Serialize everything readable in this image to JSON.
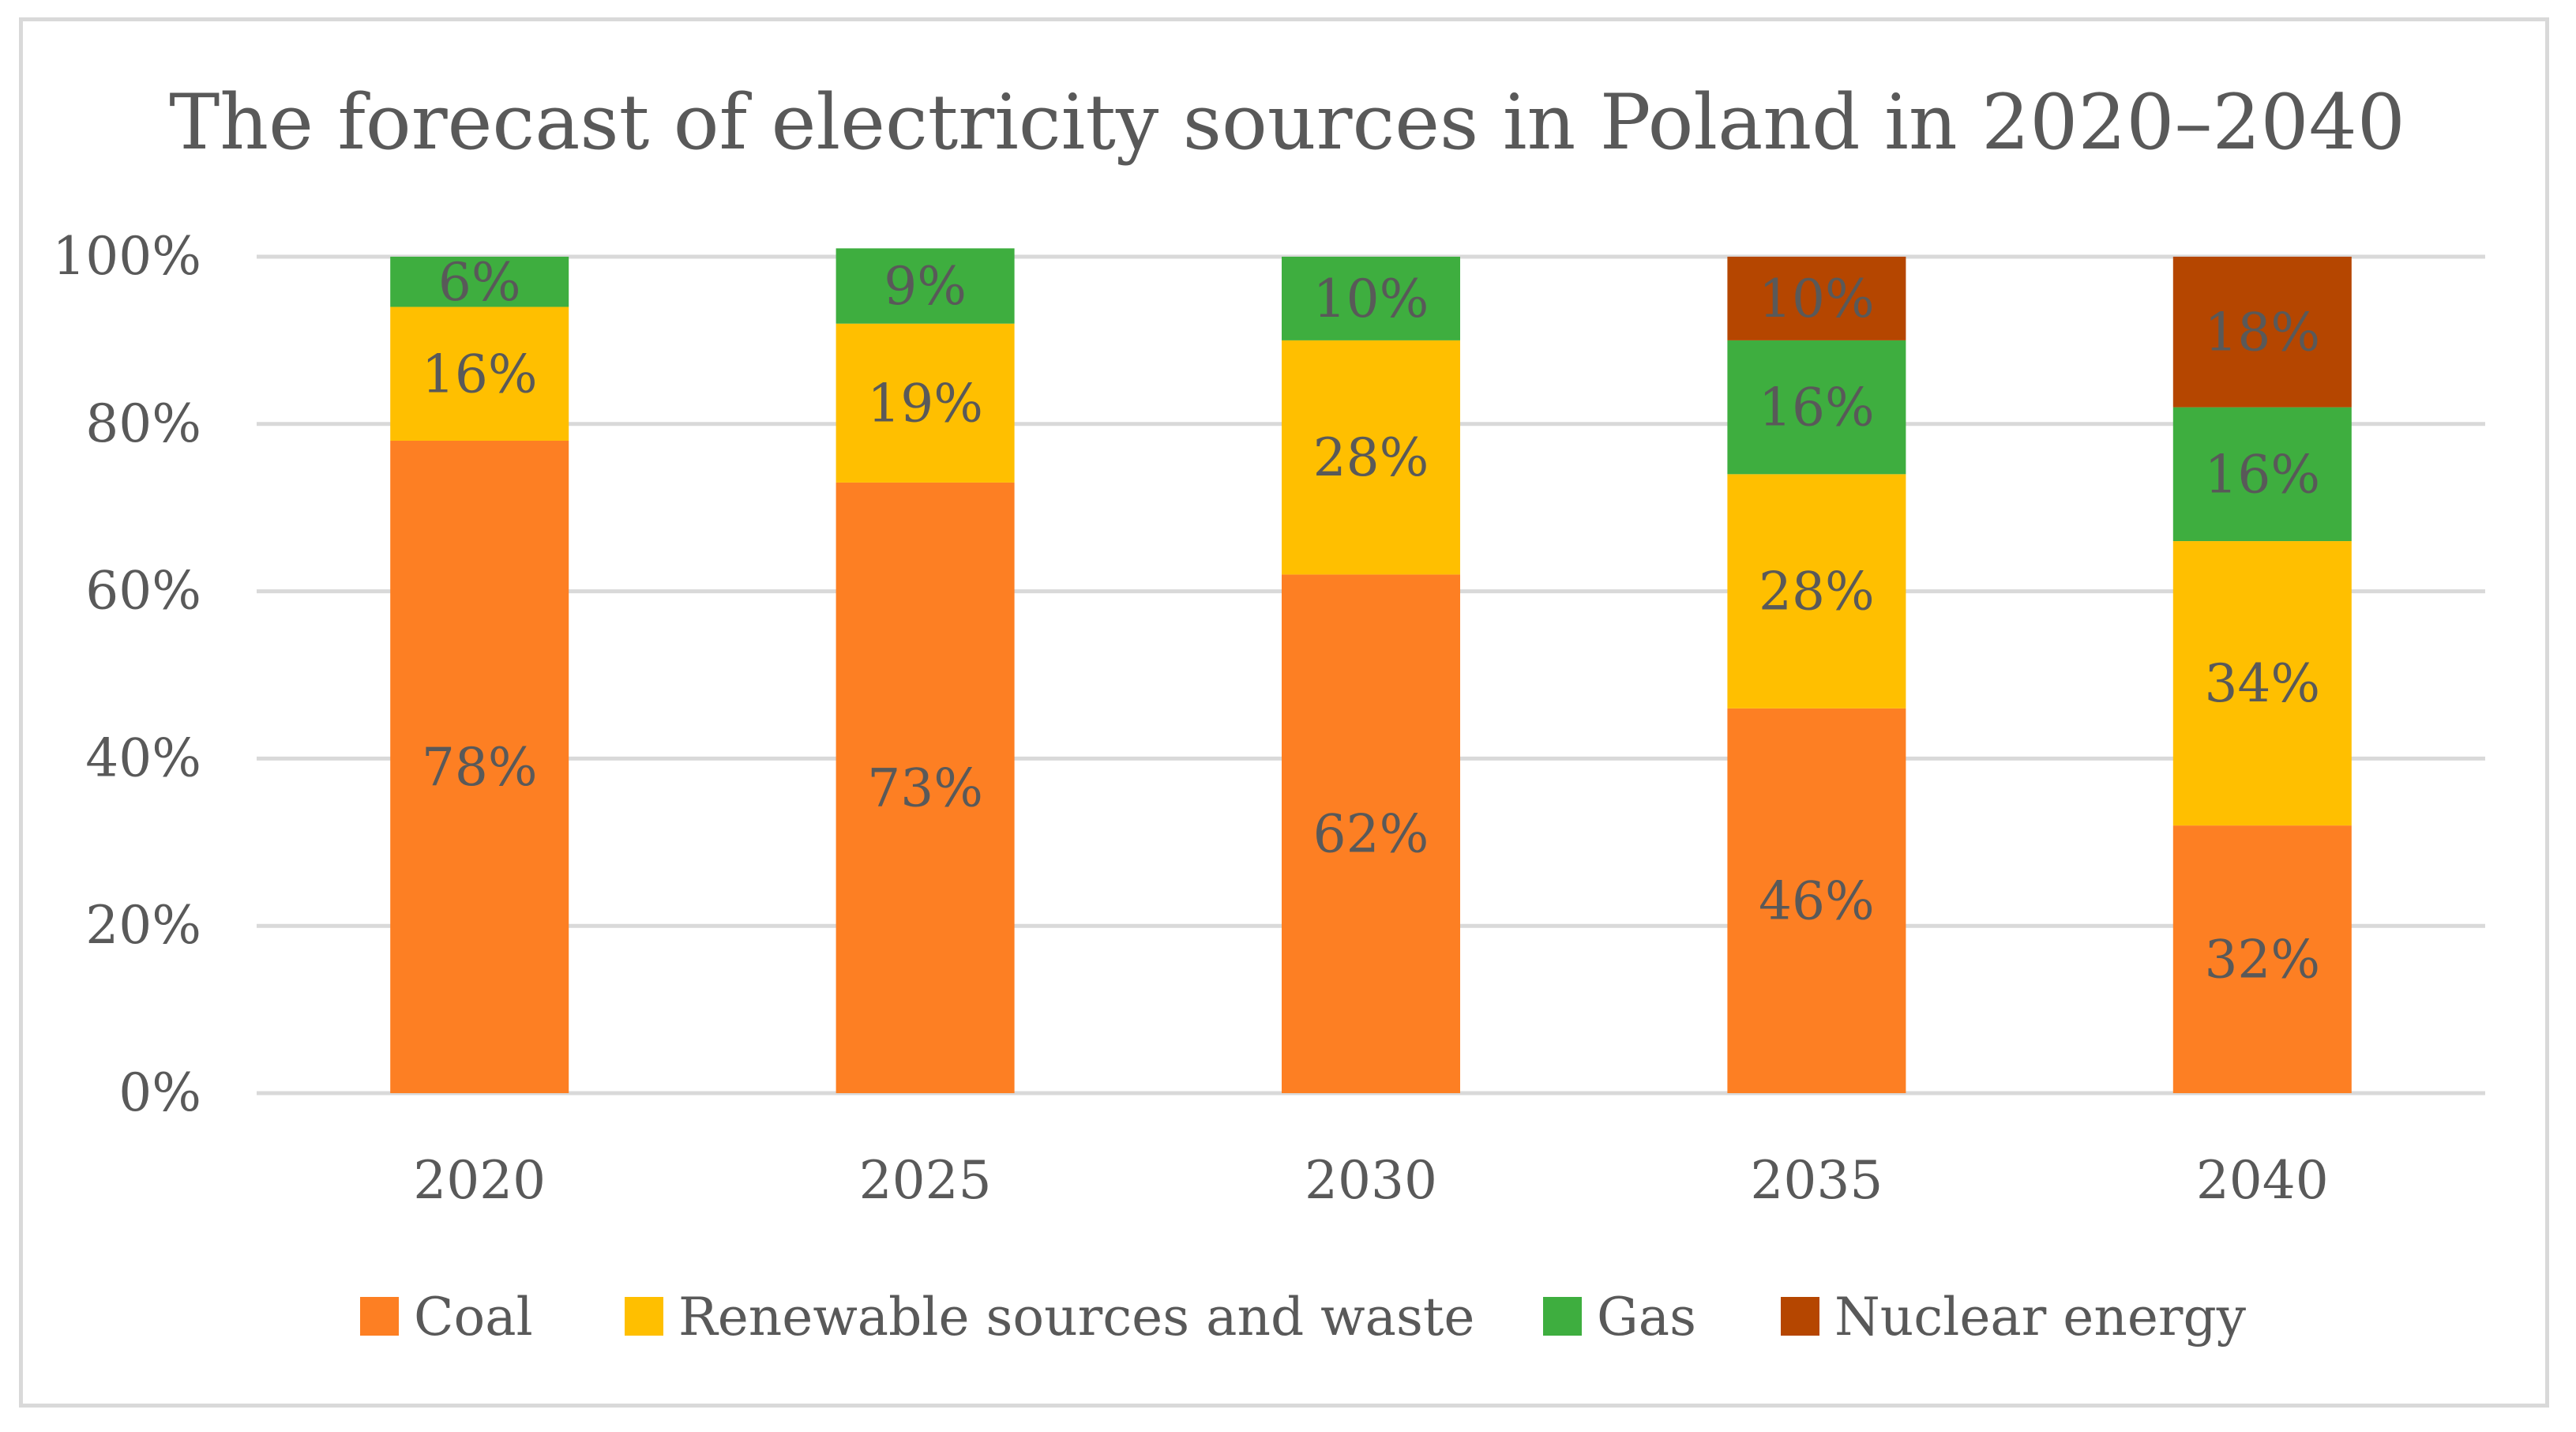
{
  "chart_data": {
    "type": "bar",
    "stacked": true,
    "title": "The forecast of electricity sources in Poland in 2020–2040",
    "xlabel": "",
    "ylabel": "",
    "categories": [
      "2020",
      "2025",
      "2030",
      "2035",
      "2040"
    ],
    "ylim": [
      0,
      100
    ],
    "yticks": [
      0,
      20,
      40,
      60,
      80,
      100
    ],
    "ytick_labels": [
      "0%",
      "20%",
      "40%",
      "60%",
      "80%",
      "100%"
    ],
    "grid": true,
    "legend_position": "bottom",
    "series": [
      {
        "name": "Coal",
        "color": "#fd7f23",
        "values": [
          78,
          73,
          62,
          46,
          32
        ],
        "labels": [
          "78%",
          "73%",
          "62%",
          "46%",
          "32%"
        ]
      },
      {
        "name": "Renewable sources and waste",
        "color": "#ffbf00",
        "values": [
          16,
          19,
          28,
          28,
          34
        ],
        "labels": [
          "16%",
          "19%",
          "28%",
          "28%",
          "34%"
        ]
      },
      {
        "name": "Gas",
        "color": "#3eae3f",
        "values": [
          6,
          9,
          10,
          16,
          16
        ],
        "labels": [
          "6%",
          "9%",
          "10%",
          "16%",
          "16%"
        ]
      },
      {
        "name": "Nuclear energy",
        "color": "#b54600",
        "values": [
          0,
          0,
          0,
          10,
          18
        ],
        "labels": [
          "",
          "",
          "",
          "10%",
          "18%"
        ]
      }
    ]
  }
}
